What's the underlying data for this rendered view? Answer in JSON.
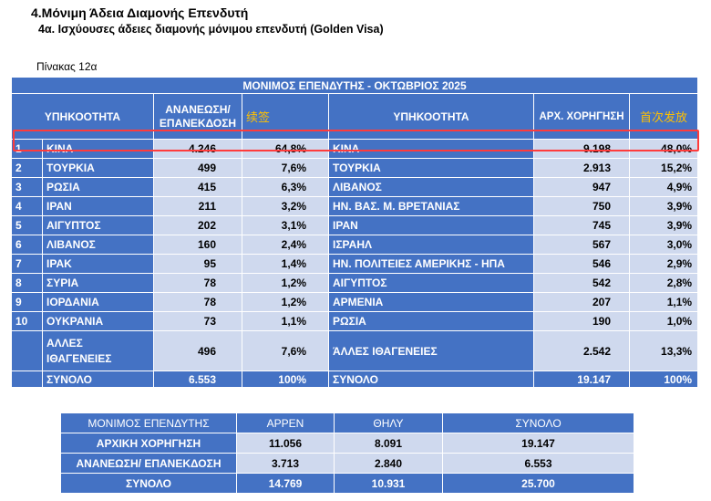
{
  "heading": "4.Μόνιμη Άδεια Διαμονής  Επενδυτή",
  "subheading": "4α. Ισχύουσες άδειες διαμονής μόνιμου επενδυτή (Golden Visa)",
  "caption": "Πίνακας 12α",
  "main_table": {
    "title": "ΜΟΝΙΜΟΣ ΕΠΕΝΔΥΤΗΣ - ΟΚΤΩΒΡΙΟΣ 2025",
    "headers": {
      "nationality_left": "ΥΠΗΚΟΟΤΗΤΑ",
      "renewal": "ΑΝΑΝΕΩΣΗ/ ΕΠΑΝΕΚΔΟΣΗ",
      "renewal_zh": "续签",
      "nationality_right": "ΥΠΗΚΟΟΤΗΤΑ",
      "initial": "ΑΡΧ. ΧΟΡΗΓΗΣΗ",
      "initial_zh": "首次发放"
    },
    "rows": [
      {
        "rank": "1",
        "l_country": "ΚΙΝΑ",
        "l_value": "4.246",
        "l_pct": "64,8%",
        "r_country": "ΚΙΝΑ",
        "r_value": "9.198",
        "r_pct": "48,0%"
      },
      {
        "rank": "2",
        "l_country": "ΤΟΥΡΚΙΑ",
        "l_value": "499",
        "l_pct": "7,6%",
        "r_country": "ΤΟΥΡΚΙΑ",
        "r_value": "2.913",
        "r_pct": "15,2%"
      },
      {
        "rank": "3",
        "l_country": "ΡΩΣΙΑ",
        "l_value": "415",
        "l_pct": "6,3%",
        "r_country": "ΛΙΒΑΝΟΣ",
        "r_value": "947",
        "r_pct": "4,9%"
      },
      {
        "rank": "4",
        "l_country": "ΙΡΑΝ",
        "l_value": "211",
        "l_pct": "3,2%",
        "r_country": "ΗΝ. ΒΑΣ. Μ. ΒΡΕΤΑΝΙΑΣ",
        "r_value": "750",
        "r_pct": "3,9%"
      },
      {
        "rank": "5",
        "l_country": "ΑΙΓΥΠΤΟΣ",
        "l_value": "202",
        "l_pct": "3,1%",
        "r_country": "ΙΡΑΝ",
        "r_value": "745",
        "r_pct": "3,9%"
      },
      {
        "rank": "6",
        "l_country": "ΛΙΒΑΝΟΣ",
        "l_value": "160",
        "l_pct": "2,4%",
        "r_country": "ΙΣΡΑΗΛ",
        "r_value": "567",
        "r_pct": "3,0%"
      },
      {
        "rank": "7",
        "l_country": "ΙΡΑΚ",
        "l_value": "95",
        "l_pct": "1,4%",
        "r_country": "ΗΝ. ΠΟΛΙΤΕΙΕΣ ΑΜΕΡΙΚΗΣ - ΗΠΑ",
        "r_value": "546",
        "r_pct": "2,9%"
      },
      {
        "rank": "8",
        "l_country": "ΣΥΡΙΑ",
        "l_value": "78",
        "l_pct": "1,2%",
        "r_country": "ΑΙΓΥΠΤΟΣ",
        "r_value": "542",
        "r_pct": "2,8%"
      },
      {
        "rank": "9",
        "l_country": "ΙΟΡΔΑΝΙΑ",
        "l_value": "78",
        "l_pct": "1,2%",
        "r_country": "ΑΡΜΕΝΙΑ",
        "r_value": "207",
        "r_pct": "1,1%"
      },
      {
        "rank": "10",
        "l_country": "ΟΥΚΡΑΝΙΑ",
        "l_value": "73",
        "l_pct": "1,1%",
        "r_country": "ΡΩΣΙΑ",
        "r_value": "190",
        "r_pct": "1,0%"
      }
    ],
    "others": {
      "l_label": "ΑΛΛΕΣ ΙΘΑΓΕΝΕΙΕΣ",
      "l_value": "496",
      "l_pct": "7,6%",
      "r_label": "ΆΛΛΕΣ ΙΘΑΓΕΝΕΙΕΣ",
      "r_value": "2.542",
      "r_pct": "13,3%"
    },
    "total": {
      "l_label": "ΣΥΝΟΛΟ",
      "l_value": "6.553",
      "l_pct": "100%",
      "r_label": "ΣΥΝΟΛΟ",
      "r_value": "19.147",
      "r_pct": "100%"
    }
  },
  "summary_table": {
    "headers": [
      "ΜΟΝΙΜΟΣ ΕΠΕΝΔΥΤΗΣ",
      "ΑΡΡΕΝ",
      "ΘΗΛΥ",
      "ΣΥΝΟΛΟ"
    ],
    "rows": [
      {
        "label": "ΑΡΧΙΚΗ ΧΟΡΗΓΗΣΗ",
        "male": "11.056",
        "female": "8.091",
        "total": "19.147"
      },
      {
        "label": "ΑΝΑΝΕΩΣΗ/ ΕΠΑΝΕΚΔΟΣΗ",
        "male": "3.713",
        "female": "2.840",
        "total": "6.553"
      },
      {
        "label": "ΣΥΝΟΛΟ",
        "male": "14.769",
        "female": "10.931",
        "total": "25.700"
      }
    ]
  },
  "colors": {
    "header_blue": "#4472c4",
    "cell_light": "#cfd9ee",
    "annotation_yellow": "#ffc000",
    "highlight_red": "#ff3b3b"
  }
}
